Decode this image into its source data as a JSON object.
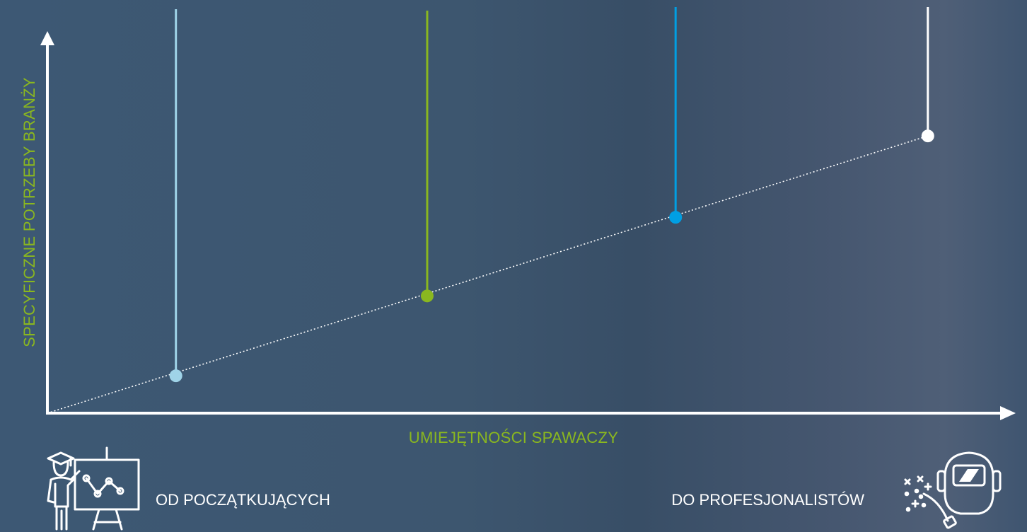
{
  "colors": {
    "accent_green": "#8ab71f",
    "axis": "#ffffff",
    "guide": "#ffffff",
    "level_1": "#9fd3e8",
    "level_2": "#8ab71f",
    "level_3": "#009fe3",
    "level_4": "#ffffff"
  },
  "axes": {
    "x_label": "UMIEJĘTNOŚCI SPAWACZY",
    "y_label": "SPECYFICZNE POTRZEBY BRANŻY"
  },
  "captions": {
    "left": "OD POCZĄTKUJĄCYCH",
    "right": "DO PROFESJONALISTÓW"
  },
  "icons": {
    "left": "teacher-at-board-icon",
    "right": "welding-helmet-icon"
  },
  "chart_data": {
    "type": "scatter",
    "x_range": [
      0,
      1
    ],
    "y_range": [
      0,
      1
    ],
    "grid": false,
    "series": [
      {
        "x": [
          0.134,
          0.396,
          0.655,
          0.918
        ],
        "y": [
          0.097,
          0.304,
          0.508,
          0.719
        ],
        "colors": [
          "#9fd3e8",
          "#8ab71f",
          "#009fe3",
          "#ffffff"
        ]
      }
    ]
  }
}
